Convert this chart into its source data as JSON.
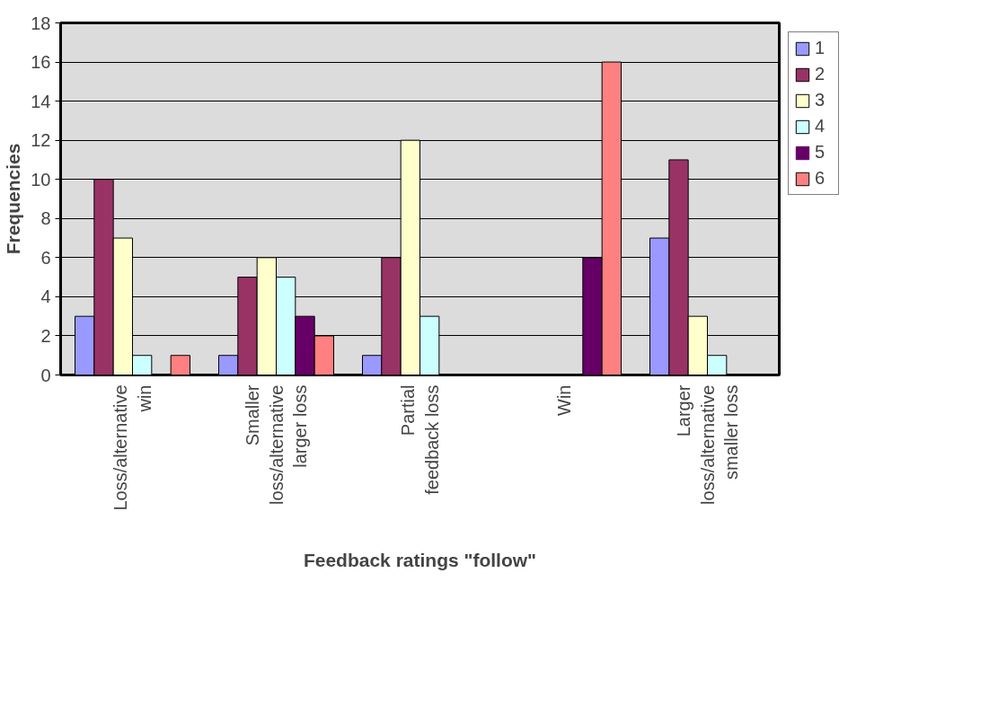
{
  "chart_data": {
    "type": "bar",
    "xlabel": "Feedback ratings \"follow\"",
    "ylabel": "Frequencies",
    "categories": [
      "Loss/alternative win",
      "Smaller loss/alternative larger loss",
      "Partial feedback loss",
      "Win",
      "Larger loss/alternative smaller loss"
    ],
    "series": [
      {
        "name": "1",
        "color": "#9999ff",
        "values": [
          3,
          1,
          1,
          0,
          7
        ]
      },
      {
        "name": "2",
        "color": "#993366",
        "values": [
          10,
          5,
          6,
          0,
          11
        ]
      },
      {
        "name": "3",
        "color": "#ffffcc",
        "values": [
          7,
          6,
          12,
          0,
          3
        ]
      },
      {
        "name": "4",
        "color": "#ccffff",
        "values": [
          1,
          5,
          3,
          0,
          1
        ]
      },
      {
        "name": "5",
        "color": "#660066",
        "values": [
          0,
          3,
          0,
          6,
          0
        ]
      },
      {
        "name": "6",
        "color": "#ff8080",
        "values": [
          1,
          2,
          0,
          16,
          0
        ]
      }
    ],
    "ylim": [
      0,
      18
    ],
    "yticks": [
      0,
      2,
      4,
      6,
      8,
      10,
      12,
      14,
      16,
      18
    ],
    "grid": "y",
    "legend": "right"
  }
}
